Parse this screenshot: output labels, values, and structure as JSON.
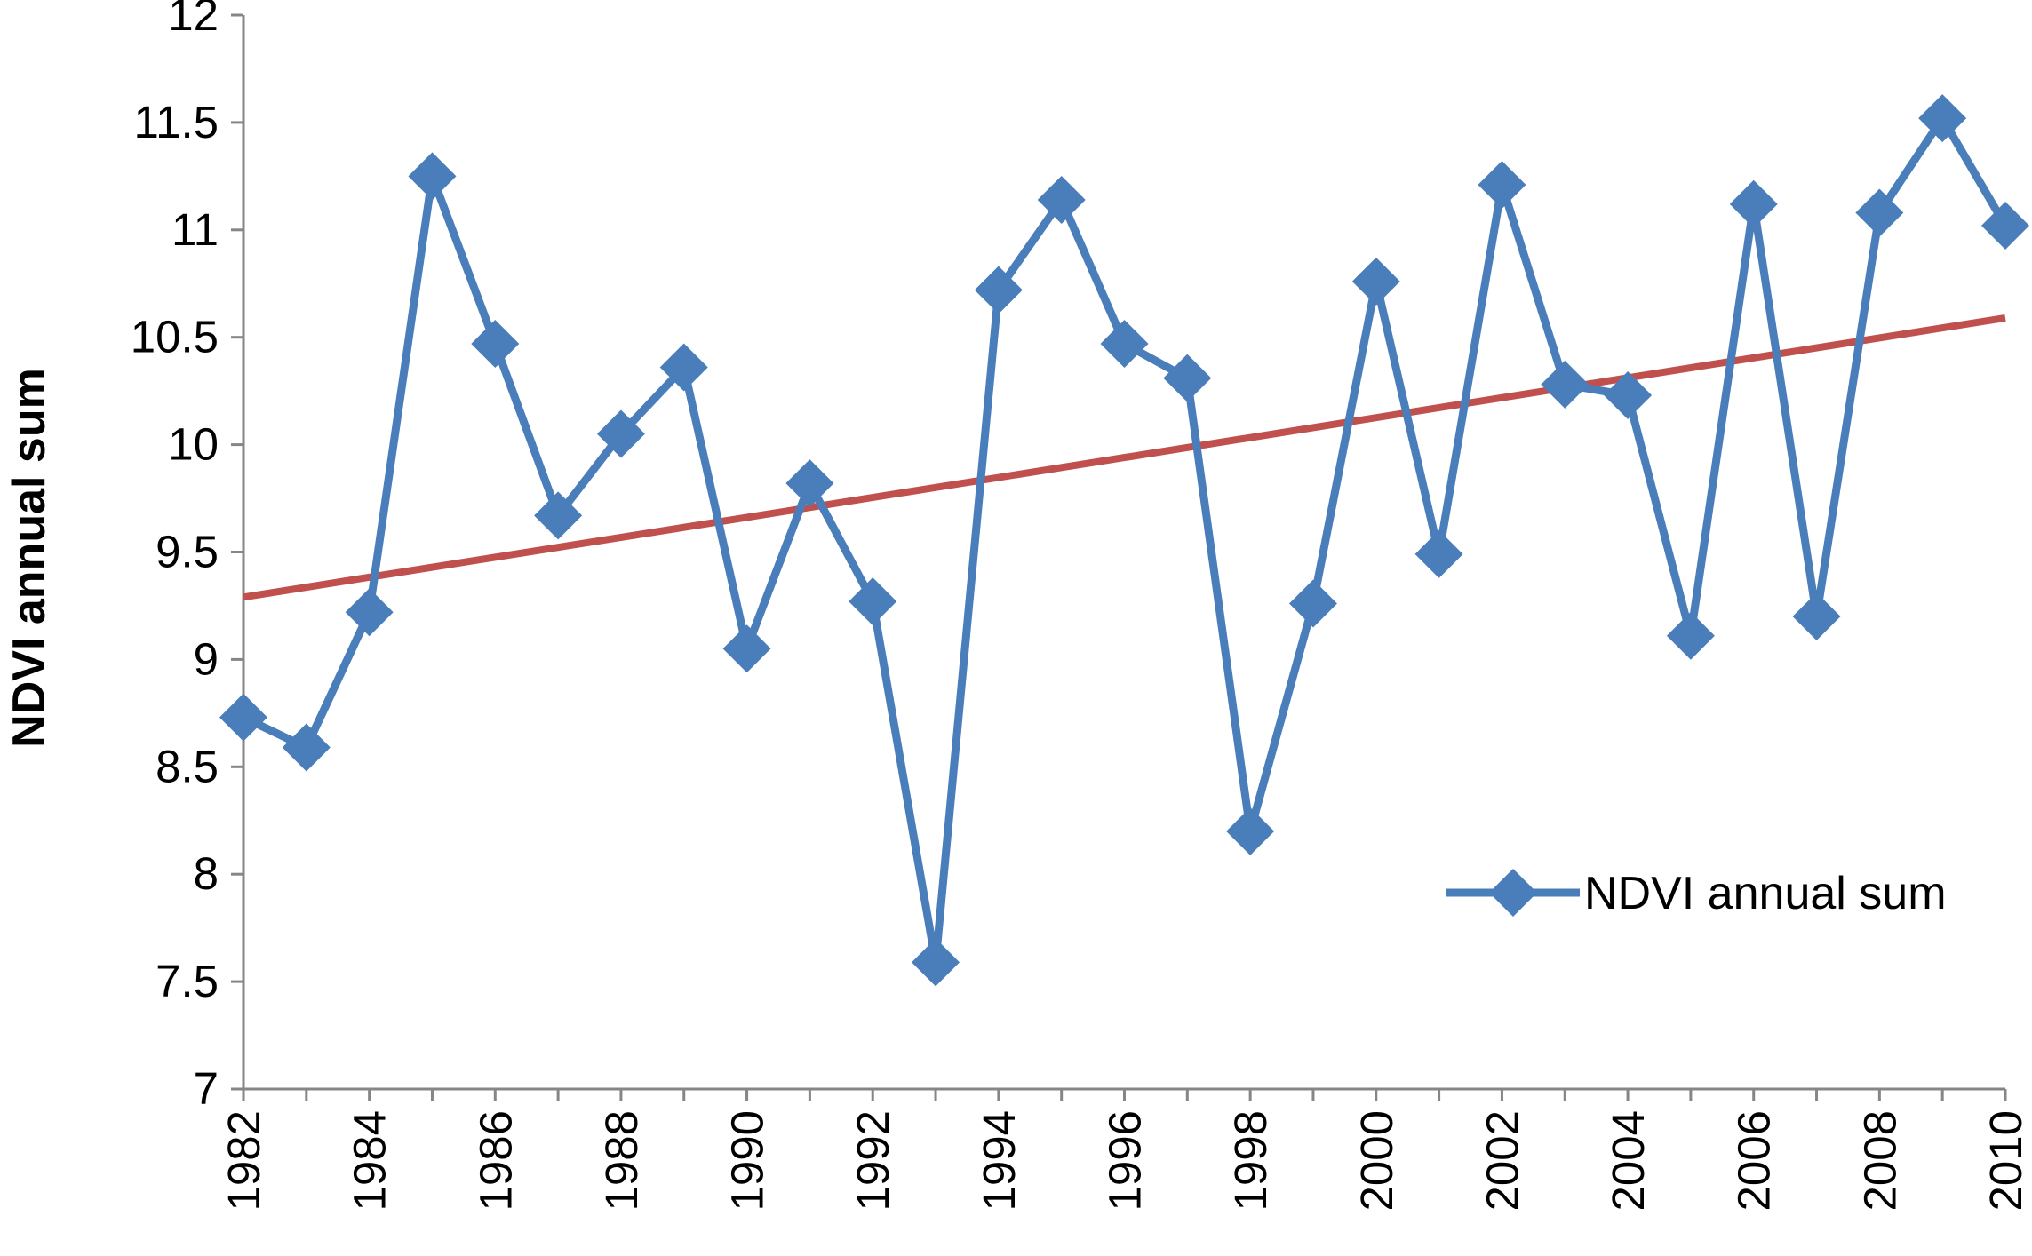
{
  "chart_data": {
    "type": "line",
    "title": "",
    "xlabel": "",
    "ylabel": "NDVI annual sum",
    "xlim": [
      1982,
      2010
    ],
    "ylim": [
      7,
      12
    ],
    "y_ticks": [
      "7",
      "7.5",
      "8",
      "8.5",
      "9",
      "9.5",
      "10",
      "10.5",
      "11",
      "11.5",
      "12"
    ],
    "x_ticks": [
      "1982",
      "1984",
      "1986",
      "1988",
      "1990",
      "1992",
      "1994",
      "1996",
      "1998",
      "2000",
      "2002",
      "2004",
      "2006",
      "2008",
      "2010"
    ],
    "grid": false,
    "legend_position": "lower-right",
    "x": [
      1982,
      1983,
      1984,
      1985,
      1986,
      1987,
      1988,
      1989,
      1990,
      1991,
      1992,
      1993,
      1994,
      1995,
      1996,
      1997,
      1998,
      1999,
      2000,
      2001,
      2002,
      2003,
      2004,
      2005,
      2006,
      2007,
      2008,
      2009,
      2010
    ],
    "series": [
      {
        "name": "NDVI annual sum",
        "color": "#4A7EBB",
        "marker": "diamond",
        "values": [
          8.73,
          8.59,
          9.22,
          11.25,
          10.47,
          9.67,
          10.05,
          10.36,
          9.05,
          9.82,
          9.27,
          7.59,
          10.72,
          11.14,
          10.47,
          10.31,
          8.2,
          9.26,
          10.76,
          9.49,
          11.21,
          10.28,
          10.23,
          9.11,
          11.12,
          9.2,
          11.08,
          11.52,
          11.02
        ]
      }
    ],
    "trendline": {
      "color": "#C0504D",
      "start": [
        1982,
        9.29
      ],
      "end": [
        2010,
        10.59
      ]
    }
  }
}
